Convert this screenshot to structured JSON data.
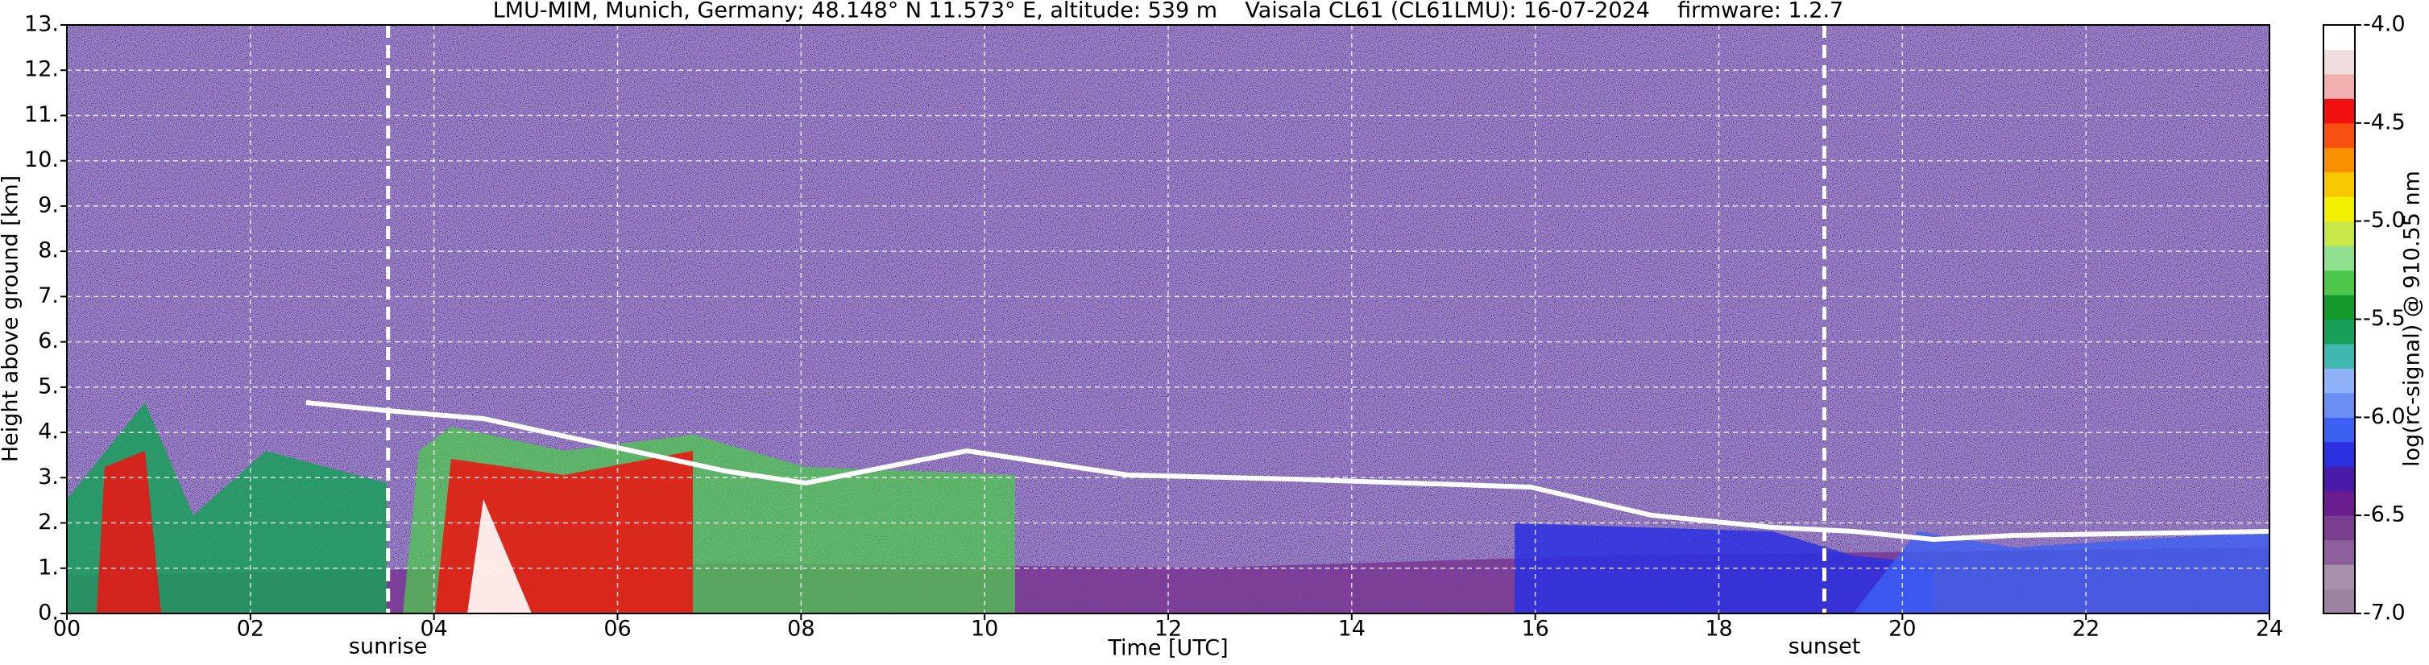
{
  "chart_data": {
    "type": "heatmap",
    "title": "LMU-MIM, Munich, Germany; 48.148° N 11.573° E, altitude: 539 m    Vaisala CL61 (CL61LMU): 16-07-2024    firmware: 1.2.7",
    "x_label": "Time [UTC]",
    "y_label": "Height above ground [km]",
    "colorbar_label": "log(rc-signal) @ 910.55 nm",
    "xlim": [
      0,
      24
    ],
    "xticks": [
      {
        "value": 0,
        "label": "00"
      },
      {
        "value": 2,
        "label": "02"
      },
      {
        "value": 4,
        "label": "04"
      },
      {
        "value": 6,
        "label": "06"
      },
      {
        "value": 8,
        "label": "08"
      },
      10,
      12,
      14,
      16,
      18,
      20,
      22,
      24
    ],
    "ylim": [
      0,
      13
    ],
    "yticks": [
      {
        "value": 0,
        "label": "0."
      },
      {
        "value": 1,
        "label": "1."
      },
      {
        "value": 2,
        "label": "2."
      },
      {
        "value": 3,
        "label": "3."
      },
      {
        "value": 4,
        "label": "4."
      },
      {
        "value": 5,
        "label": "5."
      },
      {
        "value": 6,
        "label": "6."
      },
      {
        "value": 7,
        "label": "7."
      },
      {
        "value": 8,
        "label": "8."
      },
      {
        "value": 9,
        "label": "9."
      },
      {
        "value": 10,
        "label": "10."
      },
      {
        "value": 11,
        "label": "11."
      },
      {
        "value": 12,
        "label": "12."
      },
      {
        "value": 13,
        "label": "13."
      }
    ],
    "clim": [
      -7,
      -4
    ],
    "cticks": [
      {
        "value": -7,
        "label": "-7.0"
      },
      -6.5,
      {
        "value": -6,
        "label": "-6.0"
      },
      -5.5,
      {
        "value": -5,
        "label": "-5.0"
      },
      -4.5,
      {
        "value": -4,
        "label": "-4.0"
      }
    ],
    "colormap": [
      "#9c84a0",
      "#a890ad",
      "#8d5f9b",
      "#7b3d8e",
      "#6a1d8c",
      "#4a1aa8",
      "#2b30e0",
      "#3c60f2",
      "#6b8ef5",
      "#90b2f8",
      "#40b8b0",
      "#1a9f5a",
      "#139a2a",
      "#4dc84d",
      "#90e090",
      "#c8e84a",
      "#f2f000",
      "#f8c800",
      "#f89000",
      "#f85010",
      "#f01010",
      "#f0b0b0",
      "#f0dede",
      "#ffffff"
    ],
    "grid": true,
    "annotations": [
      {
        "label": "sunrise",
        "x": 3.5
      },
      {
        "label": "sunset",
        "x": 19.15
      }
    ]
  }
}
